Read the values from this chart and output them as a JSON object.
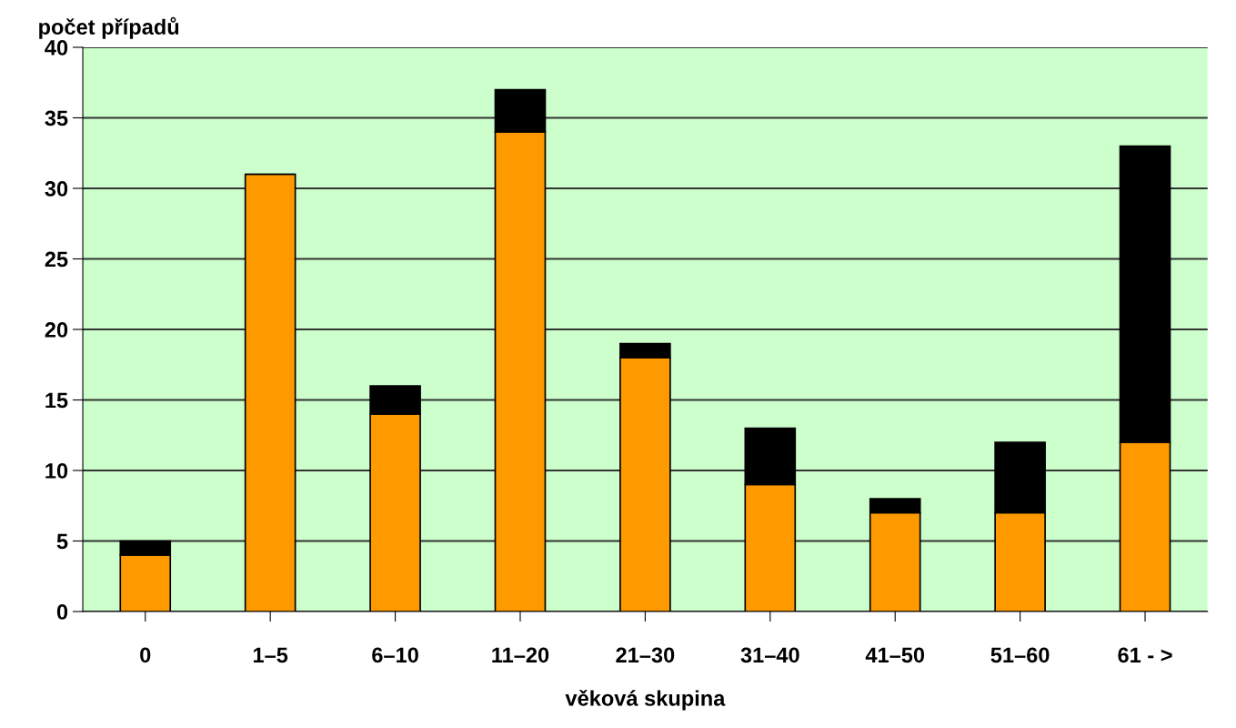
{
  "chart_data": {
    "type": "bar",
    "stacked": true,
    "xlabel": "věková skupina",
    "ylabel": "počet případů",
    "categories": [
      "0",
      "1–5",
      "6–10",
      "11–20",
      "21–30",
      "31–40",
      "41–50",
      "51–60",
      "61 - >"
    ],
    "series": [
      {
        "color": "#ff9900",
        "values": [
          4,
          31,
          14,
          34,
          18,
          9,
          7,
          7,
          12
        ]
      },
      {
        "color": "#000000",
        "values": [
          1,
          0,
          2,
          3,
          1,
          4,
          1,
          5,
          21
        ]
      }
    ],
    "ylim": [
      0,
      40
    ],
    "yticks": [
      0,
      5,
      10,
      15,
      20,
      25,
      30,
      35,
      40
    ],
    "grid": "y",
    "legend": false
  }
}
